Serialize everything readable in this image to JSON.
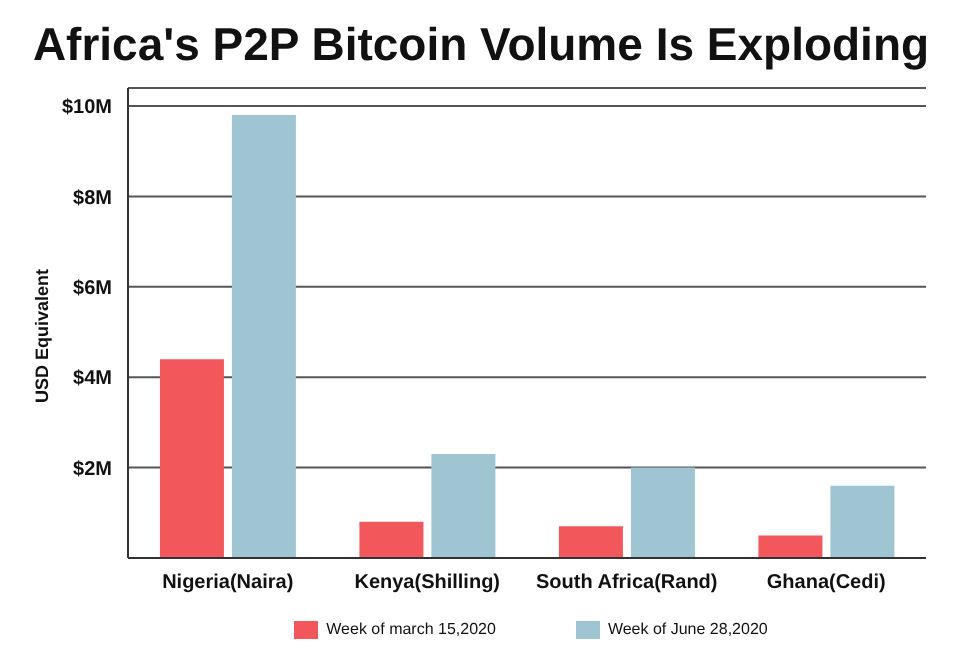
{
  "chart_data": {
    "type": "bar",
    "title": "Africa's P2P Bitcoin Volume Is Exploding",
    "ylabel": "USD Equivalent",
    "categories": [
      "Nigeria(Naira)",
      "Kenya(Shilling)",
      "South Africa(Rand)",
      "Ghana(Cedi)"
    ],
    "series": [
      {
        "name": "Week of march 15,2020",
        "color": "#f2575c",
        "values": [
          4.4,
          0.8,
          0.7,
          0.5
        ]
      },
      {
        "name": "Week of June 28,2020",
        "color": "#9fc5d3",
        "values": [
          9.8,
          2.3,
          2.0,
          1.6
        ]
      }
    ],
    "ylim": [
      0,
      10.4
    ],
    "yticks": [
      {
        "value": 2,
        "label": "$2M"
      },
      {
        "value": 4,
        "label": "$4M"
      },
      {
        "value": 6,
        "label": "$6M"
      },
      {
        "value": 8,
        "label": "$8M"
      },
      {
        "value": 10,
        "label": "$10M"
      }
    ],
    "grid": "y",
    "legend": "bottom"
  }
}
